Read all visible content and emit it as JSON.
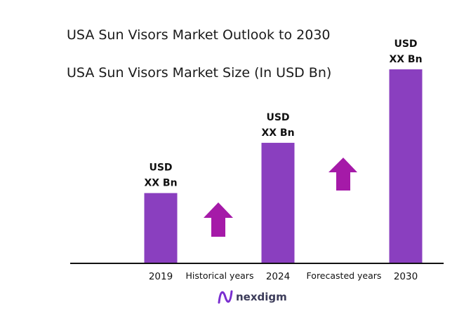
{
  "title": "USA Sun Visors Market Outlook to 2030",
  "subtitle": "USA Sun Visors Market Size (In USD Bn)",
  "brand": {
    "name": "nexdigm",
    "logo_icon": "nexdigm-logo-icon"
  },
  "colors": {
    "bar": "#8a3fbf",
    "arrow": "#a51aa8",
    "axis": "#111111",
    "brand": "#7a2fd0"
  },
  "period_labels": [
    "Historical years",
    "Forecasted years"
  ],
  "trend_arrows": [
    {
      "name": "historical-growth-arrow-icon",
      "direction": "up"
    },
    {
      "name": "forecast-growth-arrow-icon",
      "direction": "up"
    }
  ],
  "chart_data": {
    "type": "bar",
    "title": "USA Sun Visors Market Size (In USD Bn)",
    "categories": [
      "2019",
      "2024",
      "2030"
    ],
    "values": [
      0.36,
      0.62,
      1.0
    ],
    "value_labels": [
      [
        "USD",
        "XX Bn"
      ],
      [
        "USD",
        "XX Bn"
      ],
      [
        "USD",
        "XX Bn"
      ]
    ],
    "ylim": [
      0,
      1.0
    ],
    "grid": false,
    "legend": "none"
  }
}
